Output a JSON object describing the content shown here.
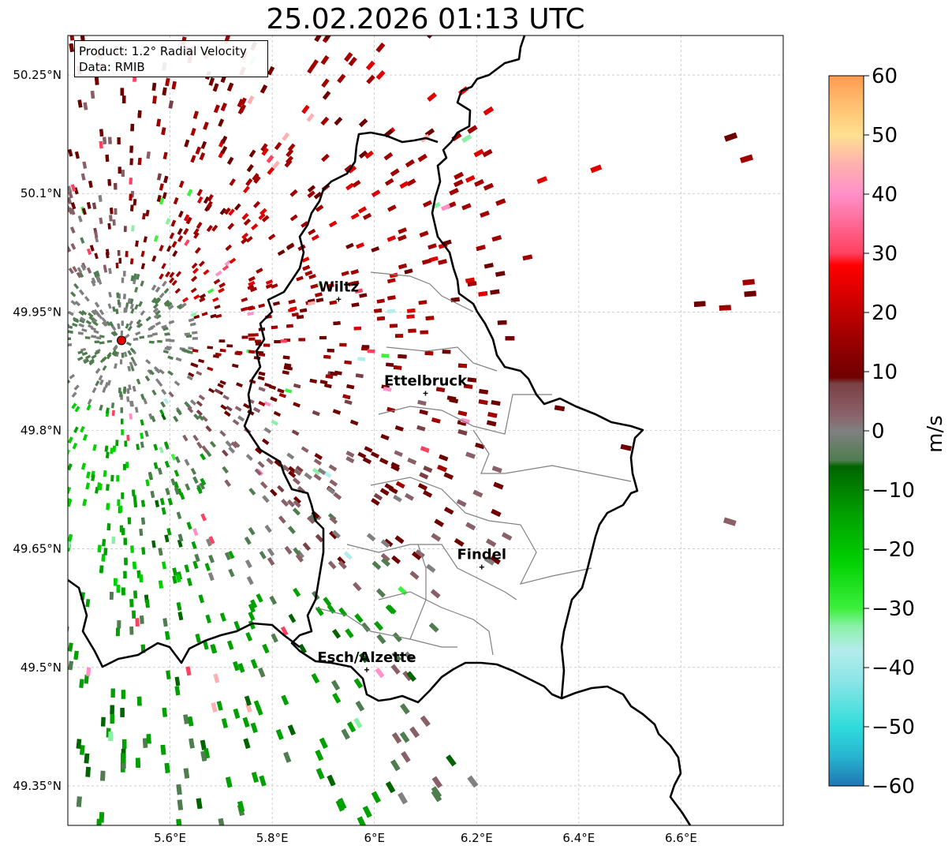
{
  "title": "25.02.2026 01:13 UTC",
  "info": {
    "product": "Product: 1.2° Radial Velocity",
    "source": "Data: RMIB"
  },
  "map": {
    "lon_range": [
      5.4,
      6.8
    ],
    "lat_range": [
      49.3,
      50.3
    ],
    "lon_ticks": [
      {
        "value": 5.6,
        "label": "5.6°E"
      },
      {
        "value": 5.8,
        "label": "5.8°E"
      },
      {
        "value": 6.0,
        "label": "6°E"
      },
      {
        "value": 6.2,
        "label": "6.2°E"
      },
      {
        "value": 6.4,
        "label": "6.4°E"
      },
      {
        "value": 6.6,
        "label": "6.6°E"
      }
    ],
    "lat_ticks": [
      {
        "value": 49.35,
        "label": "49.35°N"
      },
      {
        "value": 49.5,
        "label": "49.5°N"
      },
      {
        "value": 49.65,
        "label": "49.65°N"
      },
      {
        "value": 49.8,
        "label": "49.8°N"
      },
      {
        "value": 49.95,
        "label": "49.95°N"
      },
      {
        "value": 50.1,
        "label": "50.1°N"
      },
      {
        "value": 50.25,
        "label": "50.25°N"
      }
    ],
    "radar_site": {
      "lon": 5.505,
      "lat": 49.914
    },
    "cities": [
      {
        "name": "Wiltz",
        "lon": 5.93,
        "lat": 49.966
      },
      {
        "name": "Ettelbruck",
        "lon": 6.1,
        "lat": 49.847
      },
      {
        "name": "Findel",
        "lon": 6.21,
        "lat": 49.627
      },
      {
        "name": "Esch/Alzette",
        "lon": 5.985,
        "lat": 49.497
      }
    ]
  },
  "colorbar": {
    "label": "m/s",
    "min": -60,
    "max": 60,
    "ticks": [
      {
        "value": 60,
        "label": "60"
      },
      {
        "value": 50,
        "label": "50"
      },
      {
        "value": 40,
        "label": "40"
      },
      {
        "value": 30,
        "label": "30"
      },
      {
        "value": 20,
        "label": "20"
      },
      {
        "value": 10,
        "label": "10"
      },
      {
        "value": 0,
        "label": "0"
      },
      {
        "value": -10,
        "label": "−10"
      },
      {
        "value": -20,
        "label": "−20"
      },
      {
        "value": -30,
        "label": "−30"
      },
      {
        "value": -40,
        "label": "−40"
      },
      {
        "value": -50,
        "label": "−50"
      },
      {
        "value": -60,
        "label": "−60"
      }
    ],
    "stops": [
      {
        "value": -60,
        "color": "#1f77b4"
      },
      {
        "value": -55,
        "color": "#28b4d0"
      },
      {
        "value": -50,
        "color": "#2fdcdc"
      },
      {
        "value": -42,
        "color": "#8ee6e6"
      },
      {
        "value": -37,
        "color": "#b4ecec"
      },
      {
        "value": -33,
        "color": "#8af0a8"
      },
      {
        "value": -30,
        "color": "#3cf03c"
      },
      {
        "value": -22,
        "color": "#00d000"
      },
      {
        "value": -14,
        "color": "#00a000"
      },
      {
        "value": -6,
        "color": "#006400"
      },
      {
        "value": -5,
        "color": "#4f7d4f"
      },
      {
        "value": 0,
        "color": "#808080"
      },
      {
        "value": 3,
        "color": "#8a6068"
      },
      {
        "value": 8,
        "color": "#7a4045"
      },
      {
        "value": 9,
        "color": "#6e0000"
      },
      {
        "value": 16,
        "color": "#a00000"
      },
      {
        "value": 24,
        "color": "#e00000"
      },
      {
        "value": 28,
        "color": "#ff0000"
      },
      {
        "value": 30,
        "color": "#ff4060"
      },
      {
        "value": 40,
        "color": "#ff90c8"
      },
      {
        "value": 45,
        "color": "#ffb0b0"
      },
      {
        "value": 50,
        "color": "#ffe090"
      },
      {
        "value": 55,
        "color": "#ffc070"
      },
      {
        "value": 60,
        "color": "#ff9a50"
      }
    ]
  },
  "colors": {
    "border": "#000000",
    "district": "#808080",
    "grid": "#b0b0b0",
    "radar_marker": "#e00000"
  }
}
